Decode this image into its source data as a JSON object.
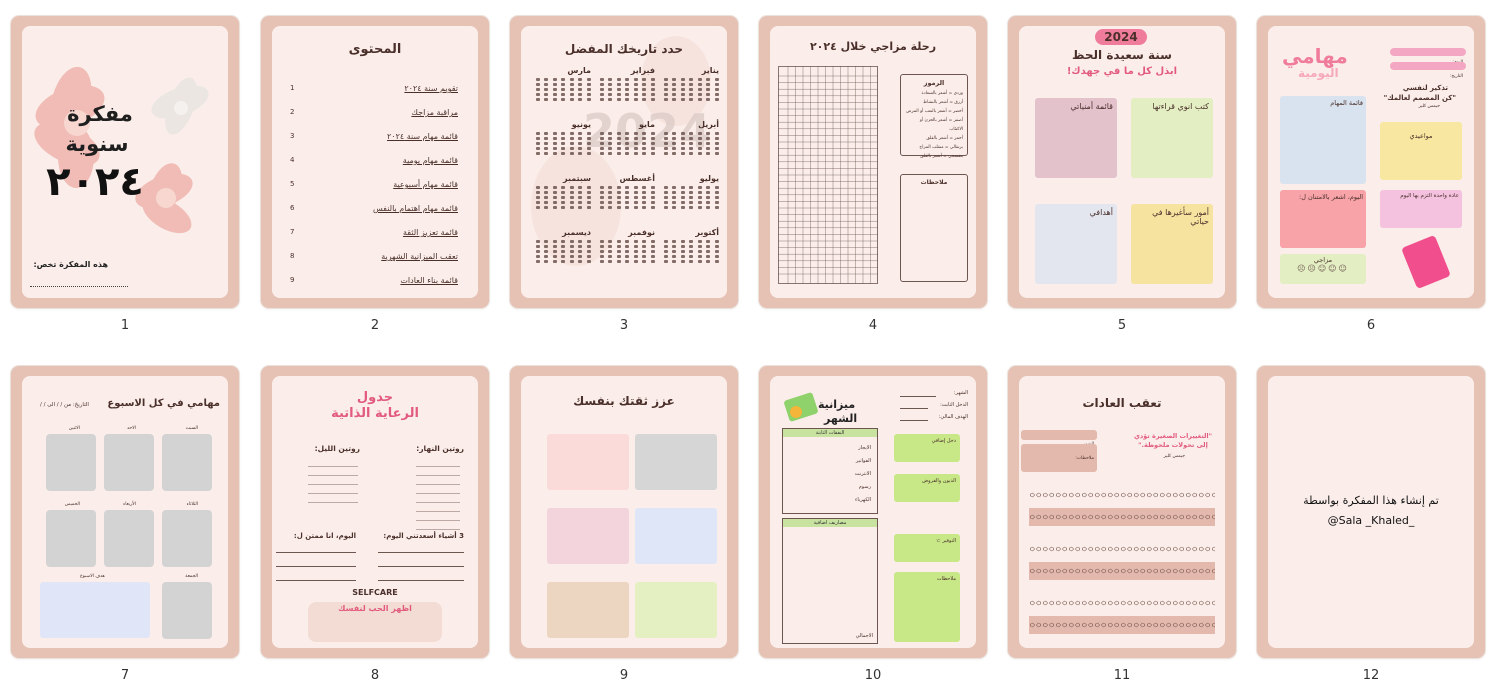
{
  "pages": [
    {
      "num": "1",
      "title_l1": "مفكرة",
      "title_l2": "سنوية",
      "year": "٢٠٢٤",
      "owner_label": "هذه المفكرة تخص:"
    },
    {
      "num": "2",
      "title": "المحتوى",
      "items": [
        {
          "n": "1",
          "t": "تقويم سنة ٢٠٢٤"
        },
        {
          "n": "2",
          "t": "مراقبة مزاجك"
        },
        {
          "n": "3",
          "t": "قائمة مهام سنة ٢٠٢٤"
        },
        {
          "n": "4",
          "t": "قائمة مهام يومية"
        },
        {
          "n": "5",
          "t": "قائمة مهام أسبوعية"
        },
        {
          "n": "6",
          "t": "قائمة مهام اهتمام بالنفس"
        },
        {
          "n": "7",
          "t": "قائمة تعزيز الثقة"
        },
        {
          "n": "8",
          "t": "تعقب الميزانية الشهرية"
        },
        {
          "n": "9",
          "t": "قائمة بناء العادات"
        }
      ]
    },
    {
      "num": "3",
      "title": "حدد تاريخك المفضل",
      "watermark": "2024",
      "months": [
        "يناير",
        "فبراير",
        "مارس",
        "أبريل",
        "مايو",
        "يونيو",
        "يوليو",
        "أغسطس",
        "سبتمبر",
        "أكتوبر",
        "نوفمبر",
        "ديسمبر"
      ]
    },
    {
      "num": "4",
      "title": "رحلة مزاجي خلال ٢٠٢٤",
      "legend_title": "الرموز",
      "legend": [
        "وردي = أشعر بالسعادة",
        "أزرق = أشعر بالنشاط",
        "أخضر = أشعر بالتعب أو المرض",
        "أصفر = أشعر بالحزن أو الاكتئاب",
        "أحمر = أشعر بالقلق",
        "برتقالي = متقلب المزاج",
        "بنفسجي = أشعر بالقلق"
      ],
      "notes_title": "ملاحظات"
    },
    {
      "num": "5",
      "badge": "2024",
      "title": "سنة سعيدة الحظ",
      "subtitle": "ابذل كل ما في جهدك!",
      "boxes": [
        "قائمة أمنياتي",
        "كتب انوي قراءتها",
        "أهدافي",
        "أمور سأغيرها في حياتي"
      ]
    },
    {
      "num": "6",
      "title_l1": "مهامي",
      "title_l2": "اليومية",
      "day_label": "اليوم:",
      "date_label": "التاريخ:",
      "reminder": "تذكير لنفسي",
      "quote": "\"كن المصمم لعالمك\"",
      "quote_by": "جيمس كلير",
      "tasks": "قائمة المهام",
      "appointments": "مواعيدي",
      "grateful": "اليوم، اشعر بالامتنان ل:",
      "habit": "عادة واحدة التزم بها اليوم",
      "mood": "مزاجي"
    },
    {
      "num": "7",
      "title": "مهامي في كل الاسبوع",
      "date_label": "التاريخ: من / / الى / /",
      "days": [
        "السبت",
        "الاحد",
        "الاثنين",
        "الثلاثاء",
        "الأربعاء",
        "الخميس",
        "الجمعة"
      ],
      "week_goal": "هدف الاسبوع"
    },
    {
      "num": "8",
      "title_l1": "جدول",
      "title_l2": "الرعاية الذاتية",
      "morning": "روتين النهار:",
      "night": "روتين الليل:",
      "three": "3 أشياء أسعدتني اليوم:",
      "grateful": "اليوم، انا ممتن ل:",
      "selfcare": "SELFCARE",
      "love": "اظهر الحب لنفسك"
    },
    {
      "num": "9",
      "title": "عزز ثقتك بنفسك"
    },
    {
      "num": "10",
      "title_l1": "ميزانية",
      "title_l2": "الشهر",
      "month_label": "الشهر:",
      "income_label": "الدخل الثابت:",
      "goal_label": "الهدف المالي:",
      "fixed": "النفقات الثابتة",
      "extra": "مصاريف اضافية",
      "rows": [
        "الايجار",
        "الفواتير",
        "الانترنت",
        "رسوم",
        "الكهرباء"
      ],
      "total": "الاجمالي",
      "extra_income": "دخل إضافي",
      "debts": "الديون والقروض",
      "savings": "التوفير :٪",
      "notes": "ملاحظات"
    },
    {
      "num": "11",
      "title": "تعقب العادات",
      "quote": "\"التغييرات الصغيرة تؤدي إلى تحولات ملحوظة.\"",
      "quote_by": "جيمس كلير",
      "month": "الشهر",
      "notes": "ملاحظات:"
    },
    {
      "num": "12",
      "line1": "تم إنشاء هذا المفكرة بواسطة",
      "line2": "@Sala _Khaled_"
    }
  ]
}
